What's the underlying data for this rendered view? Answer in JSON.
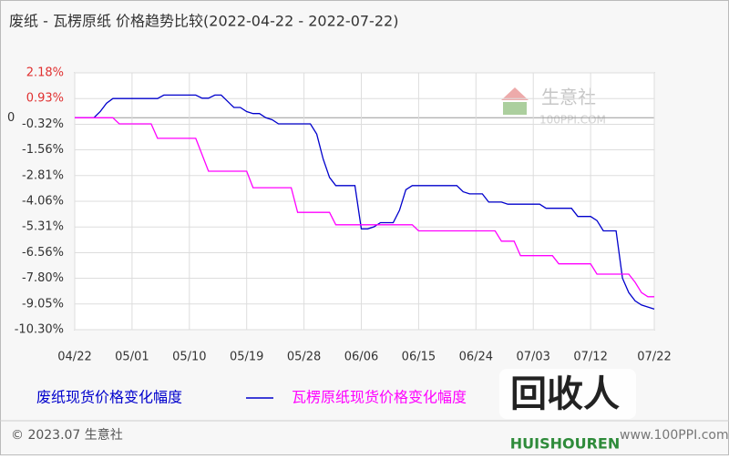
{
  "chart_data": {
    "type": "line",
    "title": "废纸 - 瓦楞原纸 价格趋势比较(2022-04-22 - 2022-07-22)",
    "categories": [
      "04/22",
      null,
      null,
      null,
      null,
      null,
      null,
      null,
      null,
      "05/01",
      null,
      null,
      null,
      null,
      null,
      null,
      null,
      null,
      "05/10",
      null,
      null,
      null,
      null,
      null,
      null,
      null,
      null,
      "05/19",
      null,
      null,
      null,
      null,
      null,
      null,
      null,
      null,
      "05/28",
      null,
      null,
      null,
      null,
      null,
      null,
      null,
      null,
      "06/06",
      null,
      null,
      null,
      null,
      null,
      null,
      null,
      null,
      "06/15",
      null,
      null,
      null,
      null,
      null,
      null,
      null,
      null,
      "06/24",
      null,
      null,
      null,
      null,
      null,
      null,
      null,
      null,
      "07/03",
      null,
      null,
      null,
      null,
      null,
      null,
      null,
      null,
      "07/12",
      null,
      null,
      null,
      null,
      null,
      null,
      null,
      null,
      null,
      "07/22"
    ],
    "series": [
      {
        "name": "废纸现货价格变化幅度",
        "color": "#0000cc",
        "values": [
          0,
          0,
          0,
          0,
          0.3,
          0.7,
          0.93,
          0.93,
          0.93,
          0.93,
          0.93,
          0.93,
          0.93,
          0.93,
          1.1,
          1.1,
          1.1,
          1.1,
          1.1,
          1.1,
          0.95,
          0.95,
          1.1,
          1.1,
          0.8,
          0.5,
          0.5,
          0.3,
          0.2,
          0.2,
          0,
          -0.1,
          -0.3,
          -0.3,
          -0.3,
          -0.3,
          -0.3,
          -0.3,
          -0.8,
          -2.0,
          -2.9,
          -3.3,
          -3.3,
          -3.3,
          -3.3,
          -5.4,
          -5.4,
          -5.3,
          -5.1,
          -5.1,
          -5.1,
          -4.5,
          -3.5,
          -3.3,
          -3.3,
          -3.3,
          -3.3,
          -3.3,
          -3.3,
          -3.3,
          -3.3,
          -3.6,
          -3.7,
          -3.7,
          -3.7,
          -4.1,
          -4.1,
          -4.1,
          -4.2,
          -4.2,
          -4.2,
          -4.2,
          -4.2,
          -4.2,
          -4.4,
          -4.4,
          -4.4,
          -4.4,
          -4.4,
          -4.8,
          -4.8,
          -4.8,
          -5.0,
          -5.5,
          -5.5,
          -5.5,
          -7.8,
          -8.5,
          -8.9,
          -9.1,
          -9.2,
          -9.3
        ]
      },
      {
        "name": "瓦楞原纸现货价格变化幅度",
        "color": "#ff00ff",
        "values": [
          0,
          0,
          0,
          0,
          0,
          0,
          0,
          -0.3,
          -0.3,
          -0.3,
          -0.3,
          -0.3,
          -0.3,
          -1.0,
          -1.0,
          -1.0,
          -1.0,
          -1.0,
          -1.0,
          -1.0,
          -1.8,
          -2.6,
          -2.6,
          -2.6,
          -2.6,
          -2.6,
          -2.6,
          -2.6,
          -3.4,
          -3.4,
          -3.4,
          -3.4,
          -3.4,
          -3.4,
          -3.4,
          -4.6,
          -4.6,
          -4.6,
          -4.6,
          -4.6,
          -4.6,
          -5.2,
          -5.2,
          -5.2,
          -5.2,
          -5.2,
          -5.2,
          -5.2,
          -5.2,
          -5.2,
          -5.2,
          -5.2,
          -5.2,
          -5.2,
          -5.5,
          -5.5,
          -5.5,
          -5.5,
          -5.5,
          -5.5,
          -5.5,
          -5.5,
          -5.5,
          -5.5,
          -5.5,
          -5.5,
          -5.5,
          -6.0,
          -6.0,
          -6.0,
          -6.7,
          -6.7,
          -6.7,
          -6.7,
          -6.7,
          -6.7,
          -7.1,
          -7.1,
          -7.1,
          -7.1,
          -7.1,
          -7.1,
          -7.6,
          -7.6,
          -7.6,
          -7.6,
          -7.6,
          -7.6,
          -8.0,
          -8.5,
          -8.7,
          -8.7
        ]
      }
    ],
    "ylim": [
      -10.3,
      2.18
    ],
    "yticks": [
      {
        "value": 2.18,
        "label": "2.18%"
      },
      {
        "value": 0.93,
        "label": "0.93%"
      },
      0,
      {
        "value": -0.32,
        "label": "-0.32%"
      },
      {
        "value": -1.56,
        "label": "-1.56%"
      },
      {
        "value": -2.81,
        "label": "-2.81%"
      },
      {
        "value": -4.06,
        "label": "-4.06%"
      },
      {
        "value": -5.31,
        "label": "-5.31%"
      },
      {
        "value": -6.56,
        "label": "-6.56%"
      },
      {
        "value": -7.8,
        "label": "-7.80%"
      },
      {
        "value": -9.05,
        "label": "-9.05%"
      },
      {
        "value": -10.3,
        "label": "-10.30%"
      }
    ],
    "grid": true,
    "watermark": {
      "name": "生意社",
      "site": "100PPI.COM"
    },
    "footer": {
      "copyright": "© 2023.07 生意社",
      "url": "www.100PPI.com"
    },
    "logo": {
      "name": "回收人",
      "pinyin": "HUISHOUREN"
    }
  }
}
